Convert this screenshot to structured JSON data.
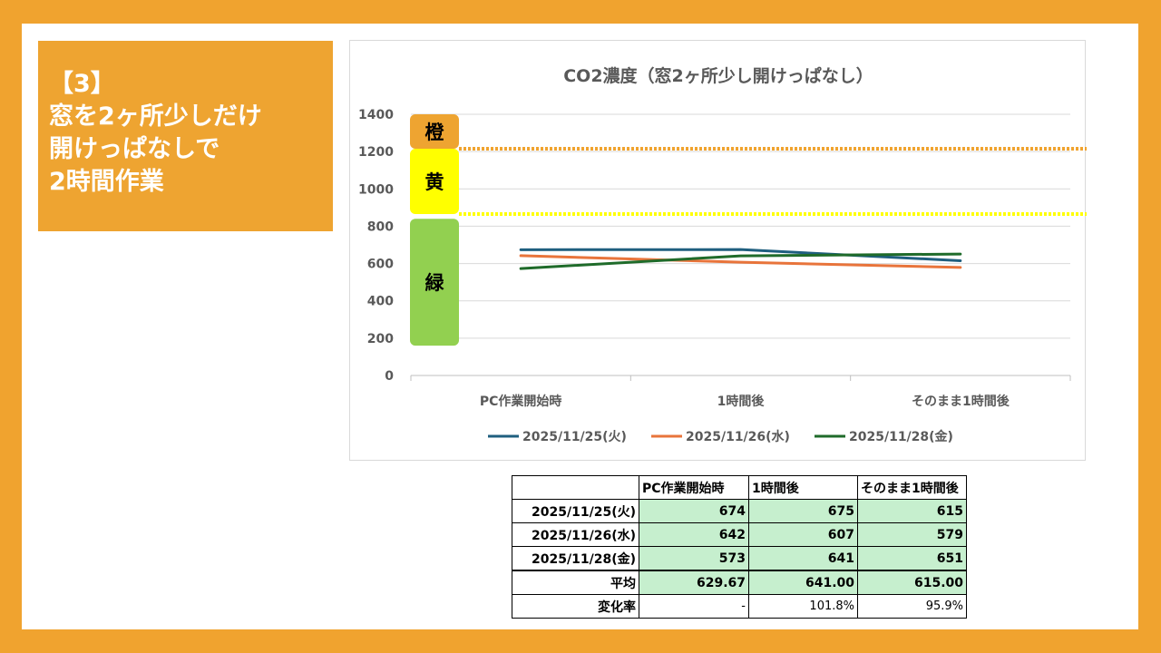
{
  "slide": {
    "title_lines": [
      "【3】",
      "窓を2ヶ所少しだけ",
      "開けっぱなしで",
      "2時間作業"
    ]
  },
  "colors": {
    "background": "#f0a32f",
    "title_box": "#eea431",
    "zone_orange": "#eea431",
    "zone_yellow": "#ffff00",
    "zone_green": "#92d050",
    "cell_green": "#c6efce"
  },
  "chart_data": {
    "type": "line",
    "title": "CO2濃度（窓2ヶ所少し開けっぱなし）",
    "categories": [
      "PC作業開始時",
      "1時間後",
      "そのまま1時間後"
    ],
    "series": [
      {
        "name": "2025/11/25(火)",
        "values": [
          674,
          675,
          615
        ],
        "color": "#1f5f7f"
      },
      {
        "name": "2025/11/26(水)",
        "values": [
          642,
          607,
          579
        ],
        "color": "#e8743b"
      },
      {
        "name": "2025/11/28(金)",
        "values": [
          573,
          641,
          651
        ],
        "color": "#1f6b2a"
      }
    ],
    "ylim": [
      0,
      1400
    ],
    "yticks": [
      0,
      200,
      400,
      600,
      800,
      1000,
      1200,
      1400
    ],
    "grid": true,
    "legend": "bottom",
    "thresholds": [
      {
        "value": 1215,
        "color": "#f0a32f"
      },
      {
        "value": 865,
        "color": "#ffff00"
      }
    ],
    "zones": [
      {
        "label": "橙",
        "from": 1215,
        "to": 1400,
        "color": "#eea431"
      },
      {
        "label": "黄",
        "from": 865,
        "to": 1215,
        "color": "#ffff00"
      },
      {
        "label": "緑",
        "from": 160,
        "to": 840,
        "color": "#92d050"
      }
    ]
  },
  "table": {
    "headers": [
      "",
      "PC作業開始時",
      "1時間後",
      "そのまま1時間後"
    ],
    "rows": [
      {
        "label": "2025/11/25(火)",
        "values": [
          "674",
          "675",
          "615"
        ]
      },
      {
        "label": "2025/11/26(水)",
        "values": [
          "642",
          "607",
          "579"
        ]
      },
      {
        "label": "2025/11/28(金)",
        "values": [
          "573",
          "641",
          "651"
        ]
      }
    ],
    "average": {
      "label": "平均",
      "values": [
        "629.67",
        "641.00",
        "615.00"
      ]
    },
    "rate": {
      "label": "変化率",
      "values": [
        "-",
        "101.8%",
        "95.9%"
      ]
    }
  }
}
